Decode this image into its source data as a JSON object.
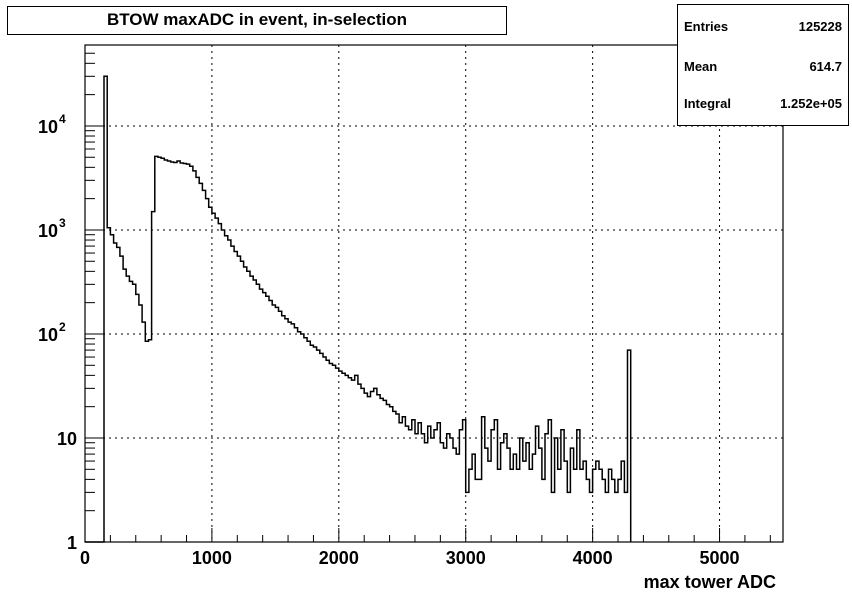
{
  "chart_data": {
    "type": "histogram",
    "title": "BTOW maxADC in event, in-selection",
    "xlabel": "max tower ADC",
    "ylabel": "",
    "xlim": [
      0,
      5500
    ],
    "ylim": [
      1,
      60000
    ],
    "yscale": "log",
    "grid": true,
    "xticks": [
      "0",
      "1000",
      "2000",
      "3000",
      "4000",
      "5000"
    ],
    "yticks": [
      {
        "base": "1",
        "exp": ""
      },
      {
        "base": "10",
        "exp": ""
      },
      {
        "base": "10",
        "exp": "2"
      },
      {
        "base": "10",
        "exp": "3"
      },
      {
        "base": "10",
        "exp": "4"
      }
    ],
    "stats": [
      {
        "label": "Entries",
        "value": "125228"
      },
      {
        "label": "Mean",
        "value": "614.7"
      },
      {
        "label": "Integral",
        "value": "1.252e+05"
      }
    ],
    "series": [
      {
        "x_start": 0,
        "bin_width": 25,
        "values": [
          1,
          1,
          1,
          1,
          1,
          1,
          30000,
          1050,
          900,
          750,
          680,
          560,
          420,
          360,
          320,
          300,
          240,
          190,
          130,
          85,
          88,
          1500,
          5100,
          5000,
          4900,
          4700,
          4600,
          4500,
          4450,
          4600,
          4400,
          4350,
          4300,
          4100,
          3700,
          3200,
          2800,
          2400,
          2000,
          1650,
          1450,
          1300,
          1150,
          1000,
          880,
          800,
          700,
          620,
          560,
          500,
          440,
          400,
          360,
          330,
          300,
          270,
          250,
          230,
          210,
          190,
          180,
          165,
          150,
          140,
          130,
          125,
          115,
          105,
          100,
          92,
          85,
          78,
          75,
          70,
          65,
          60,
          56,
          52,
          50,
          47,
          44,
          42,
          40,
          38,
          36,
          40,
          33,
          30,
          27,
          25,
          28,
          30,
          26,
          24,
          23,
          21,
          20,
          18,
          17,
          14,
          16,
          13,
          12,
          15,
          11,
          14,
          11,
          9,
          13,
          10,
          12,
          14,
          9,
          8,
          11,
          10,
          8,
          7,
          12,
          15,
          3,
          5,
          7,
          4,
          4,
          16,
          8,
          6,
          12,
          15,
          5,
          9,
          11,
          8,
          5,
          7,
          5,
          10,
          6,
          9,
          5,
          7,
          13,
          8,
          4,
          11,
          15,
          3,
          10,
          5,
          12,
          6,
          3,
          8,
          5,
          12,
          5,
          6,
          4,
          3,
          5,
          6,
          5,
          4,
          3,
          5,
          4,
          3,
          4,
          6,
          3,
          70
        ]
      }
    ]
  }
}
